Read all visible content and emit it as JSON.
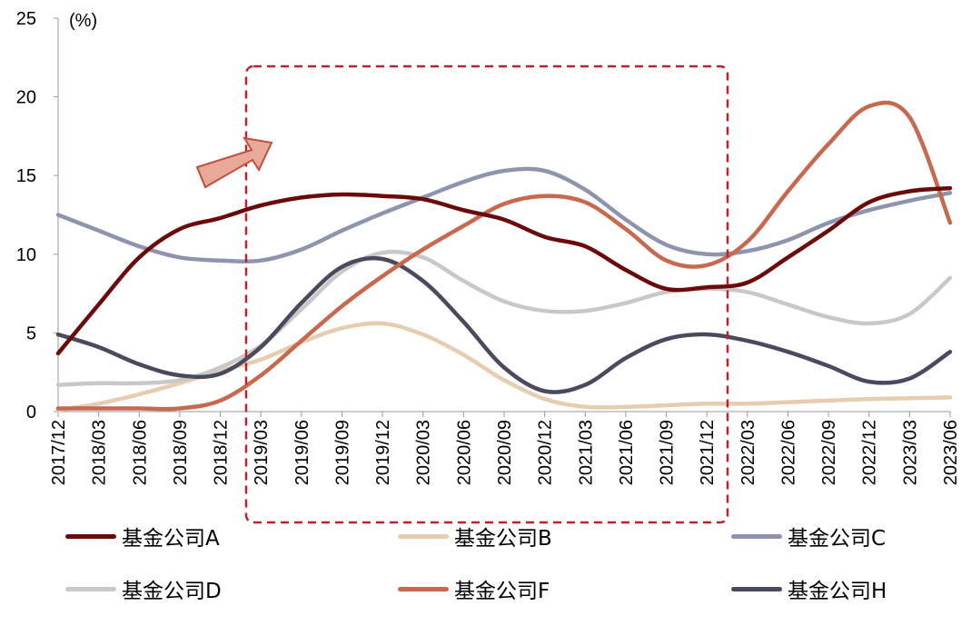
{
  "chart_data": {
    "type": "line",
    "unit_label": "(%)",
    "categories": [
      "2017/12",
      "2018/03",
      "2018/06",
      "2018/09",
      "2018/12",
      "2019/03",
      "2019/06",
      "2019/09",
      "2019/12",
      "2020/03",
      "2020/06",
      "2020/09",
      "2020/12",
      "2021/03",
      "2021/06",
      "2021/09",
      "2021/12",
      "2022/03",
      "2022/06",
      "2022/09",
      "2022/12",
      "2023/03",
      "2023/06"
    ],
    "ylim": [
      0,
      25
    ],
    "yticks": [
      "0",
      "5",
      "10",
      "15",
      "20",
      "25"
    ],
    "series": [
      {
        "name": "基金公司A",
        "color": "#6B0A0A",
        "values": [
          3.7,
          6.8,
          9.8,
          11.6,
          12.3,
          13.1,
          13.6,
          13.8,
          13.7,
          13.5,
          12.8,
          12.2,
          11.1,
          10.5,
          9.0,
          7.8,
          7.9,
          8.2,
          9.8,
          11.5,
          13.3,
          14.0,
          14.2
        ]
      },
      {
        "name": "基金公司B",
        "color": "#E6CDB0",
        "values": [
          0.1,
          0.5,
          1.1,
          1.8,
          2.6,
          3.3,
          4.4,
          5.3,
          5.6,
          4.9,
          3.6,
          2.0,
          0.8,
          0.3,
          0.3,
          0.4,
          0.5,
          0.5,
          0.6,
          0.7,
          0.8,
          0.85,
          0.9
        ]
      },
      {
        "name": "基金公司C",
        "color": "#8E93AE",
        "values": [
          12.5,
          11.5,
          10.5,
          9.8,
          9.6,
          9.6,
          10.3,
          11.5,
          12.6,
          13.6,
          14.6,
          15.3,
          15.3,
          14.1,
          12.2,
          10.6,
          10.0,
          10.2,
          10.9,
          12.0,
          12.8,
          13.4,
          13.9
        ]
      },
      {
        "name": "基金公司D",
        "color": "#C8C8C8",
        "values": [
          1.7,
          1.8,
          1.8,
          2.0,
          2.8,
          4.2,
          6.5,
          8.9,
          10.1,
          9.8,
          8.3,
          7.0,
          6.4,
          6.4,
          6.9,
          7.6,
          7.8,
          7.6,
          6.8,
          6.0,
          5.6,
          6.2,
          8.5
        ]
      },
      {
        "name": "基金公司F",
        "color": "#C8684F",
        "values": [
          0.2,
          0.2,
          0.2,
          0.2,
          0.7,
          2.3,
          4.5,
          6.7,
          8.6,
          10.3,
          11.8,
          13.2,
          13.7,
          13.3,
          11.6,
          9.6,
          9.3,
          10.8,
          14.0,
          17.0,
          19.4,
          18.7,
          12.0
        ]
      },
      {
        "name": "基金公司H",
        "color": "#4A4A5E",
        "values": [
          4.9,
          4.1,
          3.0,
          2.3,
          2.4,
          4.1,
          6.9,
          9.2,
          9.7,
          8.3,
          5.7,
          2.8,
          1.3,
          1.7,
          3.4,
          4.6,
          4.9,
          4.5,
          3.8,
          2.9,
          1.9,
          2.1,
          3.8
        ]
      }
    ],
    "legend_position": "bottom",
    "annotation": "dashed highlight box over 2018/12–2021/12 with arrow"
  }
}
